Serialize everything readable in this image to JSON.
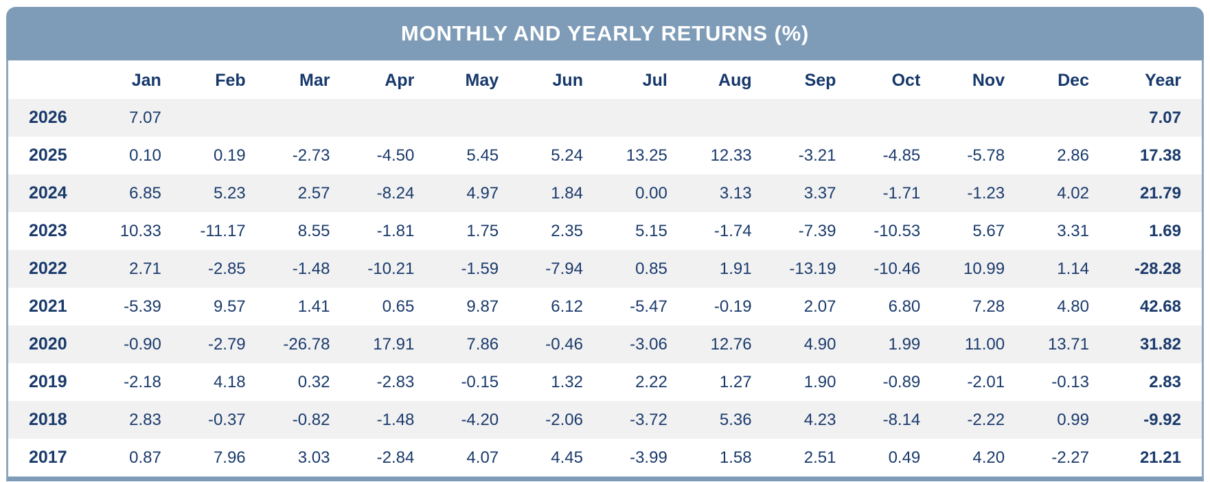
{
  "title": "MONTHLY AND YEARLY RETURNS (%)",
  "colors": {
    "header_bar": "#7E9CB8",
    "border": "#8FA6BE",
    "text_navy": "#1A3A6B",
    "alt_row": "#F1F1F2",
    "title_text": "#FFFFFF"
  },
  "table": {
    "columns": [
      "",
      "Jan",
      "Feb",
      "Mar",
      "Apr",
      "May",
      "Jun",
      "Jul",
      "Aug",
      "Sep",
      "Oct",
      "Nov",
      "Dec",
      "Year"
    ],
    "rows": [
      {
        "year": "2026",
        "values": [
          "7.07",
          "",
          "",
          "",
          "",
          "",
          "",
          "",
          "",
          "",
          "",
          ""
        ],
        "total": "7.07"
      },
      {
        "year": "2025",
        "values": [
          "0.10",
          "0.19",
          "-2.73",
          "-4.50",
          "5.45",
          "5.24",
          "13.25",
          "12.33",
          "-3.21",
          "-4.85",
          "-5.78",
          "2.86"
        ],
        "total": "17.38"
      },
      {
        "year": "2024",
        "values": [
          "6.85",
          "5.23",
          "2.57",
          "-8.24",
          "4.97",
          "1.84",
          "0.00",
          "3.13",
          "3.37",
          "-1.71",
          "-1.23",
          "4.02"
        ],
        "total": "21.79"
      },
      {
        "year": "2023",
        "values": [
          "10.33",
          "-11.17",
          "8.55",
          "-1.81",
          "1.75",
          "2.35",
          "5.15",
          "-1.74",
          "-7.39",
          "-10.53",
          "5.67",
          "3.31"
        ],
        "total": "1.69"
      },
      {
        "year": "2022",
        "values": [
          "2.71",
          "-2.85",
          "-1.48",
          "-10.21",
          "-1.59",
          "-7.94",
          "0.85",
          "1.91",
          "-13.19",
          "-10.46",
          "10.99",
          "1.14"
        ],
        "total": "-28.28"
      },
      {
        "year": "2021",
        "values": [
          "-5.39",
          "9.57",
          "1.41",
          "0.65",
          "9.87",
          "6.12",
          "-5.47",
          "-0.19",
          "2.07",
          "6.80",
          "7.28",
          "4.80"
        ],
        "total": "42.68"
      },
      {
        "year": "2020",
        "values": [
          "-0.90",
          "-2.79",
          "-26.78",
          "17.91",
          "7.86",
          "-0.46",
          "-3.06",
          "12.76",
          "4.90",
          "1.99",
          "11.00",
          "13.71"
        ],
        "total": "31.82"
      },
      {
        "year": "2019",
        "values": [
          "-2.18",
          "4.18",
          "0.32",
          "-2.83",
          "-0.15",
          "1.32",
          "2.22",
          "1.27",
          "1.90",
          "-0.89",
          "-2.01",
          "-0.13"
        ],
        "total": "2.83"
      },
      {
        "year": "2018",
        "values": [
          "2.83",
          "-0.37",
          "-0.82",
          "-1.48",
          "-4.20",
          "-2.06",
          "-3.72",
          "5.36",
          "4.23",
          "-8.14",
          "-2.22",
          "0.99"
        ],
        "total": "-9.92"
      },
      {
        "year": "2017",
        "values": [
          "0.87",
          "7.96",
          "3.03",
          "-2.84",
          "4.07",
          "4.45",
          "-3.99",
          "1.58",
          "2.51",
          "0.49",
          "4.20",
          "-2.27"
        ],
        "total": "21.21"
      }
    ]
  },
  "chart_data": {
    "type": "table",
    "title": "MONTHLY AND YEARLY RETURNS (%)",
    "columns": [
      "Jan",
      "Feb",
      "Mar",
      "Apr",
      "May",
      "Jun",
      "Jul",
      "Aug",
      "Sep",
      "Oct",
      "Nov",
      "Dec",
      "Year"
    ],
    "rows": [
      {
        "year": 2026,
        "monthly": [
          7.07,
          null,
          null,
          null,
          null,
          null,
          null,
          null,
          null,
          null,
          null,
          null
        ],
        "year_total": 7.07
      },
      {
        "year": 2025,
        "monthly": [
          0.1,
          0.19,
          -2.73,
          -4.5,
          5.45,
          5.24,
          13.25,
          12.33,
          -3.21,
          -4.85,
          -5.78,
          2.86
        ],
        "year_total": 17.38
      },
      {
        "year": 2024,
        "monthly": [
          6.85,
          5.23,
          2.57,
          -8.24,
          4.97,
          1.84,
          0.0,
          3.13,
          3.37,
          -1.71,
          -1.23,
          4.02
        ],
        "year_total": 21.79
      },
      {
        "year": 2023,
        "monthly": [
          10.33,
          -11.17,
          8.55,
          -1.81,
          1.75,
          2.35,
          5.15,
          -1.74,
          -7.39,
          -10.53,
          5.67,
          3.31
        ],
        "year_total": 1.69
      },
      {
        "year": 2022,
        "monthly": [
          2.71,
          -2.85,
          -1.48,
          -10.21,
          -1.59,
          -7.94,
          0.85,
          1.91,
          -13.19,
          -10.46,
          10.99,
          1.14
        ],
        "year_total": -28.28
      },
      {
        "year": 2021,
        "monthly": [
          -5.39,
          9.57,
          1.41,
          0.65,
          9.87,
          6.12,
          -5.47,
          -0.19,
          2.07,
          6.8,
          7.28,
          4.8
        ],
        "year_total": 42.68
      },
      {
        "year": 2020,
        "monthly": [
          -0.9,
          -2.79,
          -26.78,
          17.91,
          7.86,
          -0.46,
          -3.06,
          12.76,
          4.9,
          1.99,
          11.0,
          13.71
        ],
        "year_total": 31.82
      },
      {
        "year": 2019,
        "monthly": [
          -2.18,
          4.18,
          0.32,
          -2.83,
          -0.15,
          1.32,
          2.22,
          1.27,
          1.9,
          -0.89,
          -2.01,
          -0.13
        ],
        "year_total": 2.83
      },
      {
        "year": 2018,
        "monthly": [
          2.83,
          -0.37,
          -0.82,
          -1.48,
          -4.2,
          -2.06,
          -3.72,
          5.36,
          4.23,
          -8.14,
          -2.22,
          0.99
        ],
        "year_total": -9.92
      },
      {
        "year": 2017,
        "monthly": [
          0.87,
          7.96,
          3.03,
          -2.84,
          4.07,
          4.45,
          -3.99,
          1.58,
          2.51,
          0.49,
          4.2,
          -2.27
        ],
        "year_total": 21.21
      }
    ]
  }
}
